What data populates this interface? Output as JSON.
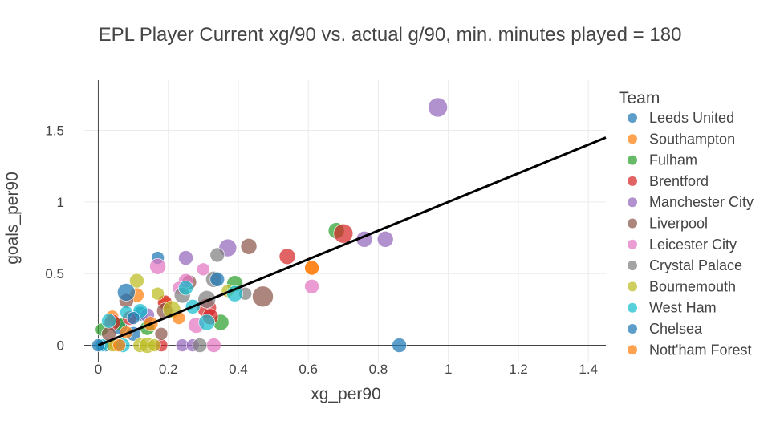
{
  "chart_data": {
    "type": "scatter",
    "title": "EPL Player Current xg/90 vs. actual g/90, min. minutes played = 180",
    "xlabel": "xg_per90",
    "ylabel": "goals_per90",
    "xlim": [
      -0.04,
      1.45
    ],
    "ylim": [
      -0.12,
      1.85
    ],
    "x_ticks": [
      0,
      0.2,
      0.4,
      0.6,
      0.8,
      1,
      1.2,
      1.4
    ],
    "x_tick_labels": [
      "0",
      "0.2",
      "0.4",
      "0.6",
      "0.8",
      "1",
      "1.2",
      "1.4"
    ],
    "y_ticks": [
      0,
      0.5,
      1,
      1.5
    ],
    "y_tick_labels": [
      "0",
      "0.5",
      "1",
      "1.5"
    ],
    "grid": true,
    "legend_title": "Team",
    "legend_position": "right",
    "trendline": {
      "color": "#000000",
      "x": [
        0,
        1.45
      ],
      "y": [
        0,
        1.45
      ]
    },
    "series": [
      {
        "name": "Leeds United",
        "color": "#1f77b4",
        "points": [
          [
            0.17,
            0.61,
            8
          ],
          [
            0.06,
            0.13,
            10
          ],
          [
            0.12,
            0.22,
            9
          ],
          [
            0.02,
            0.0,
            8
          ],
          [
            0.1,
            0.08,
            9
          ]
        ]
      },
      {
        "name": "Southampton",
        "color": "#ff7f0e",
        "points": [
          [
            0.61,
            0.54,
            9
          ],
          [
            0.19,
            0.3,
            8
          ],
          [
            0.04,
            0.2,
            8
          ],
          [
            0.11,
            0.35,
            9
          ],
          [
            0.05,
            0.0,
            8
          ]
        ]
      },
      {
        "name": "Fulham",
        "color": "#2ca02c",
        "points": [
          [
            0.68,
            0.8,
            10
          ],
          [
            0.39,
            0.43,
            10
          ],
          [
            0.35,
            0.16,
            10
          ],
          [
            0.06,
            0.15,
            8
          ],
          [
            0.01,
            0.11,
            8
          ],
          [
            0.14,
            0.12,
            9
          ]
        ]
      },
      {
        "name": "Brentford",
        "color": "#d62728",
        "points": [
          [
            0.7,
            0.78,
            12
          ],
          [
            0.54,
            0.62,
            10
          ],
          [
            0.31,
            0.26,
            12
          ],
          [
            0.32,
            0.2,
            10
          ],
          [
            0.19,
            0.3,
            9
          ],
          [
            0.09,
            0.19,
            9
          ],
          [
            0.04,
            0.16,
            10
          ],
          [
            0.18,
            0.0,
            8
          ]
        ]
      },
      {
        "name": "Manchester City",
        "color": "#9467bd",
        "points": [
          [
            0.97,
            1.66,
            12
          ],
          [
            0.82,
            0.74,
            10
          ],
          [
            0.76,
            0.74,
            10
          ],
          [
            0.37,
            0.68,
            11
          ],
          [
            0.25,
            0.61,
            9
          ],
          [
            0.24,
            0.0,
            8
          ],
          [
            0.27,
            0.0,
            8
          ],
          [
            0.14,
            0.21,
            9
          ]
        ]
      },
      {
        "name": "Liverpool",
        "color": "#8c564b",
        "points": [
          [
            0.47,
            0.34,
            13
          ],
          [
            0.43,
            0.69,
            10
          ],
          [
            0.26,
            0.44,
            9
          ],
          [
            0.19,
            0.24,
            10
          ],
          [
            0.08,
            0.31,
            9
          ],
          [
            0.03,
            0.08,
            9
          ],
          [
            0.18,
            0.08,
            8
          ]
        ]
      },
      {
        "name": "Leicester City",
        "color": "#e377c2",
        "points": [
          [
            0.61,
            0.41,
            9
          ],
          [
            0.17,
            0.55,
            10
          ],
          [
            0.3,
            0.53,
            8
          ],
          [
            0.25,
            0.45,
            9
          ],
          [
            0.33,
            0.0,
            9
          ],
          [
            0.28,
            0.14,
            10
          ],
          [
            0.23,
            0.4,
            8
          ]
        ]
      },
      {
        "name": "Crystal Palace",
        "color": "#7f7f7f",
        "points": [
          [
            0.34,
            0.63,
            9
          ],
          [
            0.33,
            0.46,
            10
          ],
          [
            0.42,
            0.36,
            8
          ],
          [
            0.24,
            0.35,
            10
          ],
          [
            0.31,
            0.32,
            11
          ],
          [
            0.29,
            0.0,
            9
          ]
        ]
      },
      {
        "name": "Bournemouth",
        "color": "#bcbd22",
        "points": [
          [
            0.11,
            0.45,
            9
          ],
          [
            0.17,
            0.36,
            8
          ],
          [
            0.21,
            0.25,
            11
          ],
          [
            0.12,
            0.0,
            9
          ],
          [
            0.14,
            0.0,
            10
          ],
          [
            0.16,
            0.0,
            8
          ],
          [
            0.04,
            0.0,
            8
          ],
          [
            0.37,
            0.38,
            8
          ]
        ]
      },
      {
        "name": "West Ham",
        "color": "#17becf",
        "points": [
          [
            0.39,
            0.36,
            10
          ],
          [
            0.25,
            0.4,
            9
          ],
          [
            0.31,
            0.16,
            10
          ],
          [
            0.12,
            0.24,
            9
          ],
          [
            0.08,
            0.23,
            8
          ],
          [
            0.03,
            0.17,
            9
          ],
          [
            0.07,
            0.0,
            9
          ],
          [
            0.01,
            0.0,
            8
          ],
          [
            0.27,
            0.27,
            9
          ]
        ]
      },
      {
        "name": "Chelsea",
        "color": "#1f77b4",
        "points": [
          [
            0.86,
            0.0,
            9
          ],
          [
            0.08,
            0.37,
            11
          ],
          [
            0.34,
            0.46,
            9
          ],
          [
            0.1,
            0.19,
            8
          ],
          [
            0.0,
            0.0,
            8
          ]
        ]
      },
      {
        "name": "Nott'ham Forest",
        "color": "#ff7f0e",
        "points": [
          [
            0.61,
            0.54,
            9
          ],
          [
            0.23,
            0.19,
            8
          ],
          [
            0.15,
            0.15,
            9
          ],
          [
            0.06,
            0.0,
            8
          ],
          [
            0.08,
            0.09,
            8
          ]
        ]
      }
    ]
  }
}
